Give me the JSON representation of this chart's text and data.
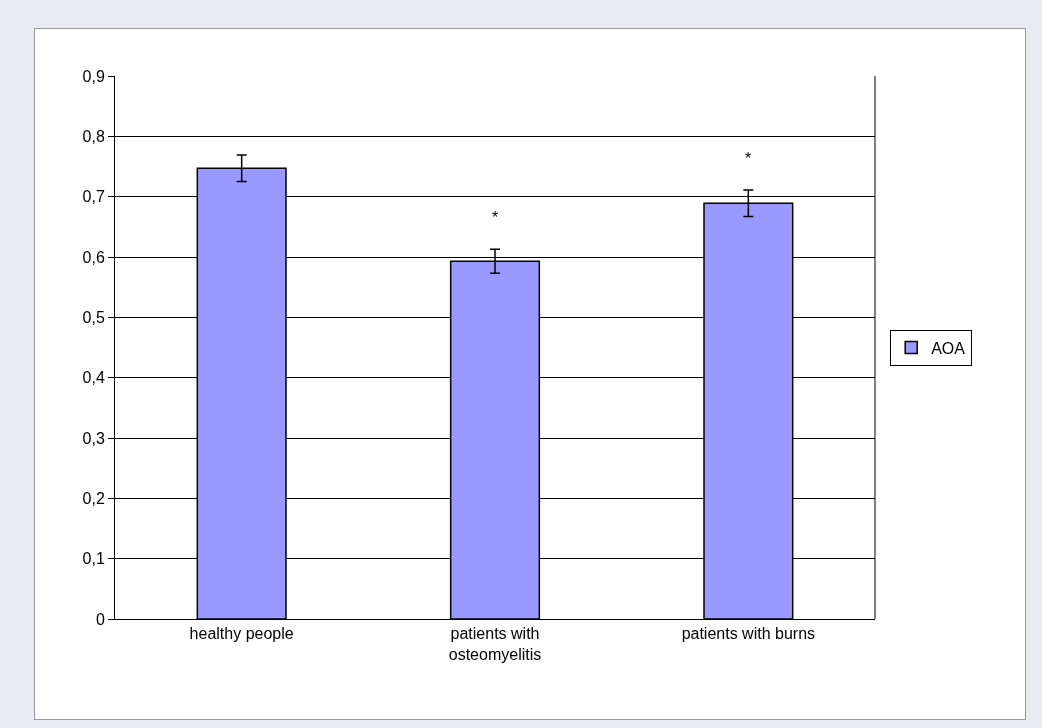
{
  "chart_data": {
    "type": "bar",
    "categories": [
      "healthy people",
      "patients with osteomyelitis",
      "patients with burns"
    ],
    "series": [
      {
        "name": "AOA",
        "color": "#9999ff",
        "values": [
          0.747,
          0.593,
          0.689
        ],
        "errors": [
          0.022,
          0.02,
          0.022
        ]
      }
    ],
    "ylim": [
      0,
      0.9
    ],
    "yticks": [
      {
        "value": 0,
        "label": "0"
      },
      {
        "value": 0.1,
        "label": "0,1"
      },
      {
        "value": 0.2,
        "label": "0,2"
      },
      {
        "value": 0.3,
        "label": "0,3"
      },
      {
        "value": 0.4,
        "label": "0,4"
      },
      {
        "value": 0.5,
        "label": "0,5"
      },
      {
        "value": 0.6,
        "label": "0,6"
      },
      {
        "value": 0.7,
        "label": "0,7"
      },
      {
        "value": 0.8,
        "label": "0,8"
      },
      {
        "value": 0.9,
        "label": "0,9"
      }
    ],
    "grid": "y",
    "legend": "right",
    "annotations": [
      "*",
      "*"
    ]
  }
}
